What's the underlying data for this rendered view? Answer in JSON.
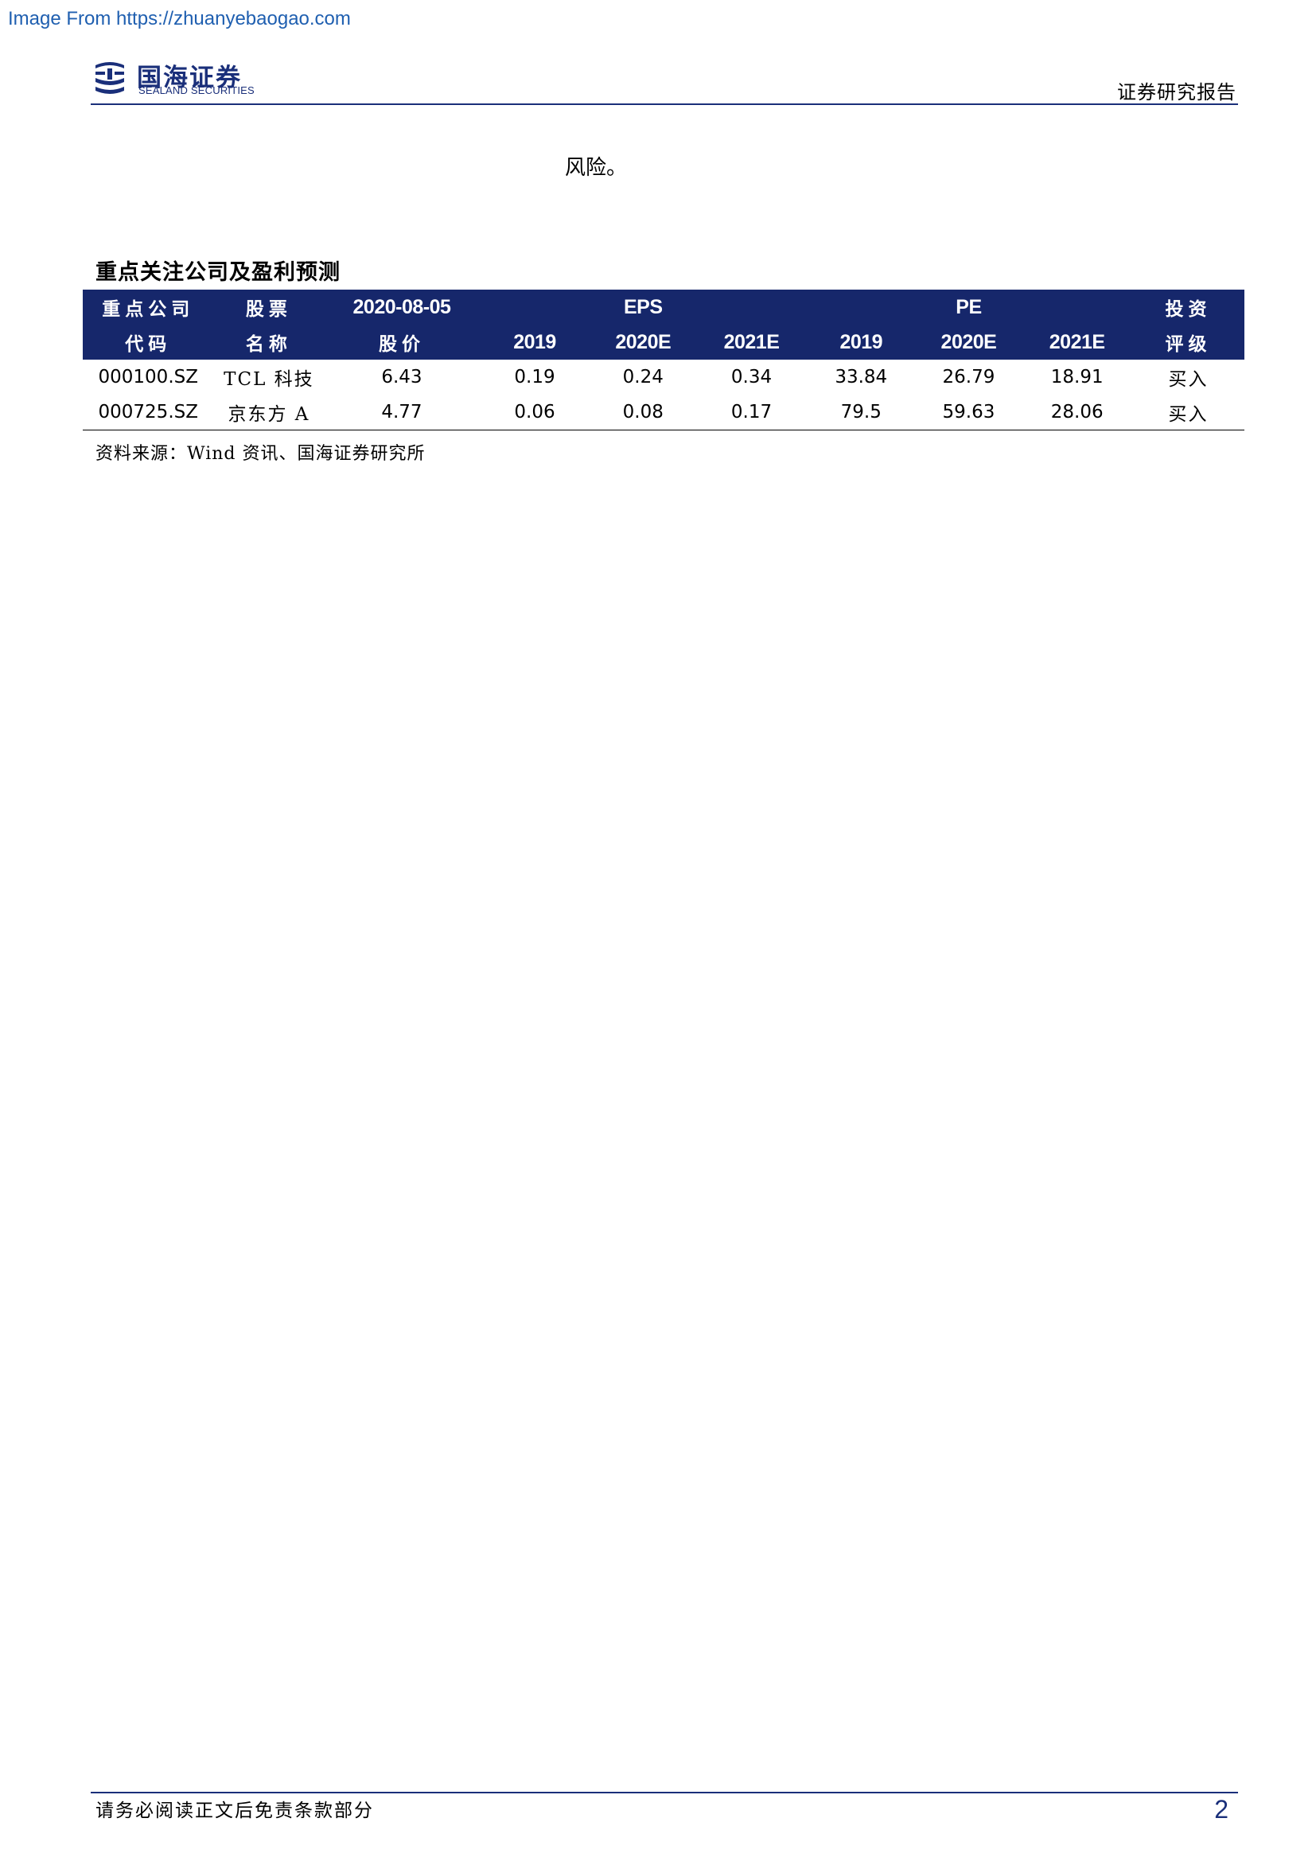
{
  "banner": "Image From https://zhuanyebaogao.com",
  "header": {
    "logo_cn": "国海证券",
    "logo_en": "SEALAND SECURITIES",
    "title": "证券研究报告"
  },
  "body_text": "风险。",
  "table": {
    "caption": "重点关注公司及盈利预测",
    "headers_top": [
      "重点公司",
      "股票",
      "2020-08-05",
      "",
      "EPS",
      "",
      "",
      "PE",
      "",
      "投资"
    ],
    "headers_bottom": [
      "代码",
      "名称",
      "股价",
      "2019",
      "2020E",
      "2021E",
      "2019",
      "2020E",
      "2021E",
      "评级"
    ],
    "rows": [
      [
        "000100.SZ",
        "TCL 科技",
        "6.43",
        "0.19",
        "0.24",
        "0.34",
        "33.84",
        "26.79",
        "18.91",
        "买入"
      ],
      [
        "000725.SZ",
        "京东方 A",
        "4.77",
        "0.06",
        "0.08",
        "0.17",
        "79.5",
        "59.63",
        "28.06",
        "买入"
      ]
    ],
    "source": "资料来源：Wind 资讯、国海证券研究所"
  },
  "footer": {
    "disclaimer": "请务必阅读正文后免责条款部分",
    "page_number": "2"
  },
  "colors": {
    "brand_navy": "#16276b",
    "banner_link": "#1f5fb0"
  }
}
